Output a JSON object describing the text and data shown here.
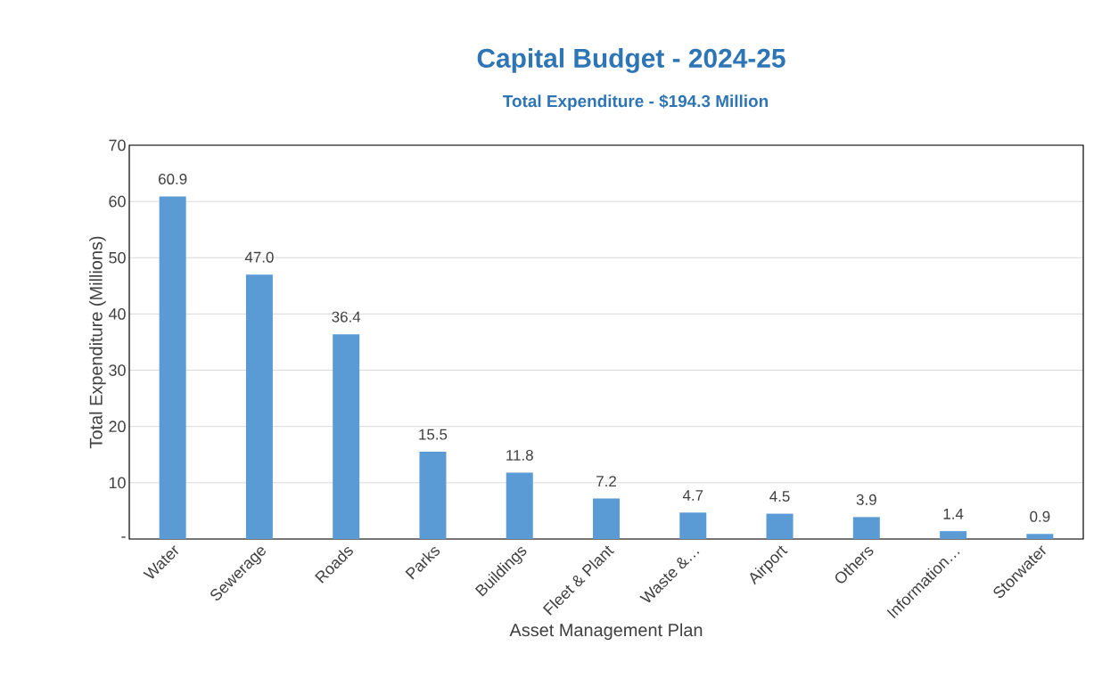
{
  "chart_data": {
    "type": "bar",
    "title": "Capital Budget - 2024-25",
    "subtitle": "Total Expenditure - $194.3 Million",
    "xlabel": "Asset Management Plan",
    "ylabel": "Total Expenditure (Millions)",
    "categories": [
      "Water",
      "Sewerage",
      "Roads",
      "Parks",
      "Buildings",
      "Fleet & Plant",
      "Waste &…",
      "Airport",
      "Others",
      "Information…",
      "Storwater"
    ],
    "values": [
      60.9,
      47.0,
      36.4,
      15.5,
      11.8,
      7.2,
      4.7,
      4.5,
      3.9,
      1.4,
      0.9
    ],
    "value_labels": [
      "60.9",
      "47.0",
      "36.4",
      "15.5",
      "11.8",
      "7.2",
      "4.7",
      "4.5",
      "3.9",
      "1.4",
      "0.9"
    ],
    "color": "#5b9bd5",
    "ylim": [
      0,
      70
    ],
    "yticks": [
      {
        "value": 0,
        "label": "-"
      },
      10,
      20,
      30,
      40,
      50,
      60,
      70
    ],
    "grid": "y"
  }
}
